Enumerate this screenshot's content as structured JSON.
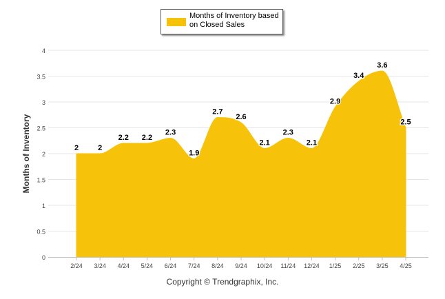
{
  "legend": {
    "label": "Months of Inventory based on Closed Sales",
    "color": "#f7c30a"
  },
  "footer": {
    "copyright": "Copyright © Trendgraphix, Inc."
  },
  "chart_data": {
    "type": "area",
    "title": "",
    "xlabel": "",
    "ylabel": "Months of Inventory",
    "ylim": [
      0,
      4
    ],
    "y_ticks": [
      "0",
      "0.5",
      "1",
      "1.5",
      "2",
      "2.5",
      "3",
      "3.5",
      "4"
    ],
    "grid": true,
    "legend_position": "top-center",
    "categories": [
      "2/24",
      "3/24",
      "4/24",
      "5/24",
      "6/24",
      "7/24",
      "8/24",
      "9/24",
      "10/24",
      "11/24",
      "12/24",
      "1/25",
      "2/25",
      "3/25",
      "4/25"
    ],
    "series": [
      {
        "name": "Months of Inventory based on Closed Sales",
        "color": "#f7c30a",
        "values": [
          2,
          2,
          2.2,
          2.2,
          2.3,
          1.9,
          2.7,
          2.6,
          2.1,
          2.3,
          2.1,
          2.9,
          3.4,
          3.6,
          2.5
        ],
        "labels": [
          "2",
          "2",
          "2.2",
          "2.2",
          "2.3",
          "1.9",
          "2.7",
          "2.6",
          "2.1",
          "2.3",
          "2.1",
          "2.9",
          "3.4",
          "3.6",
          "2.5"
        ]
      }
    ]
  }
}
